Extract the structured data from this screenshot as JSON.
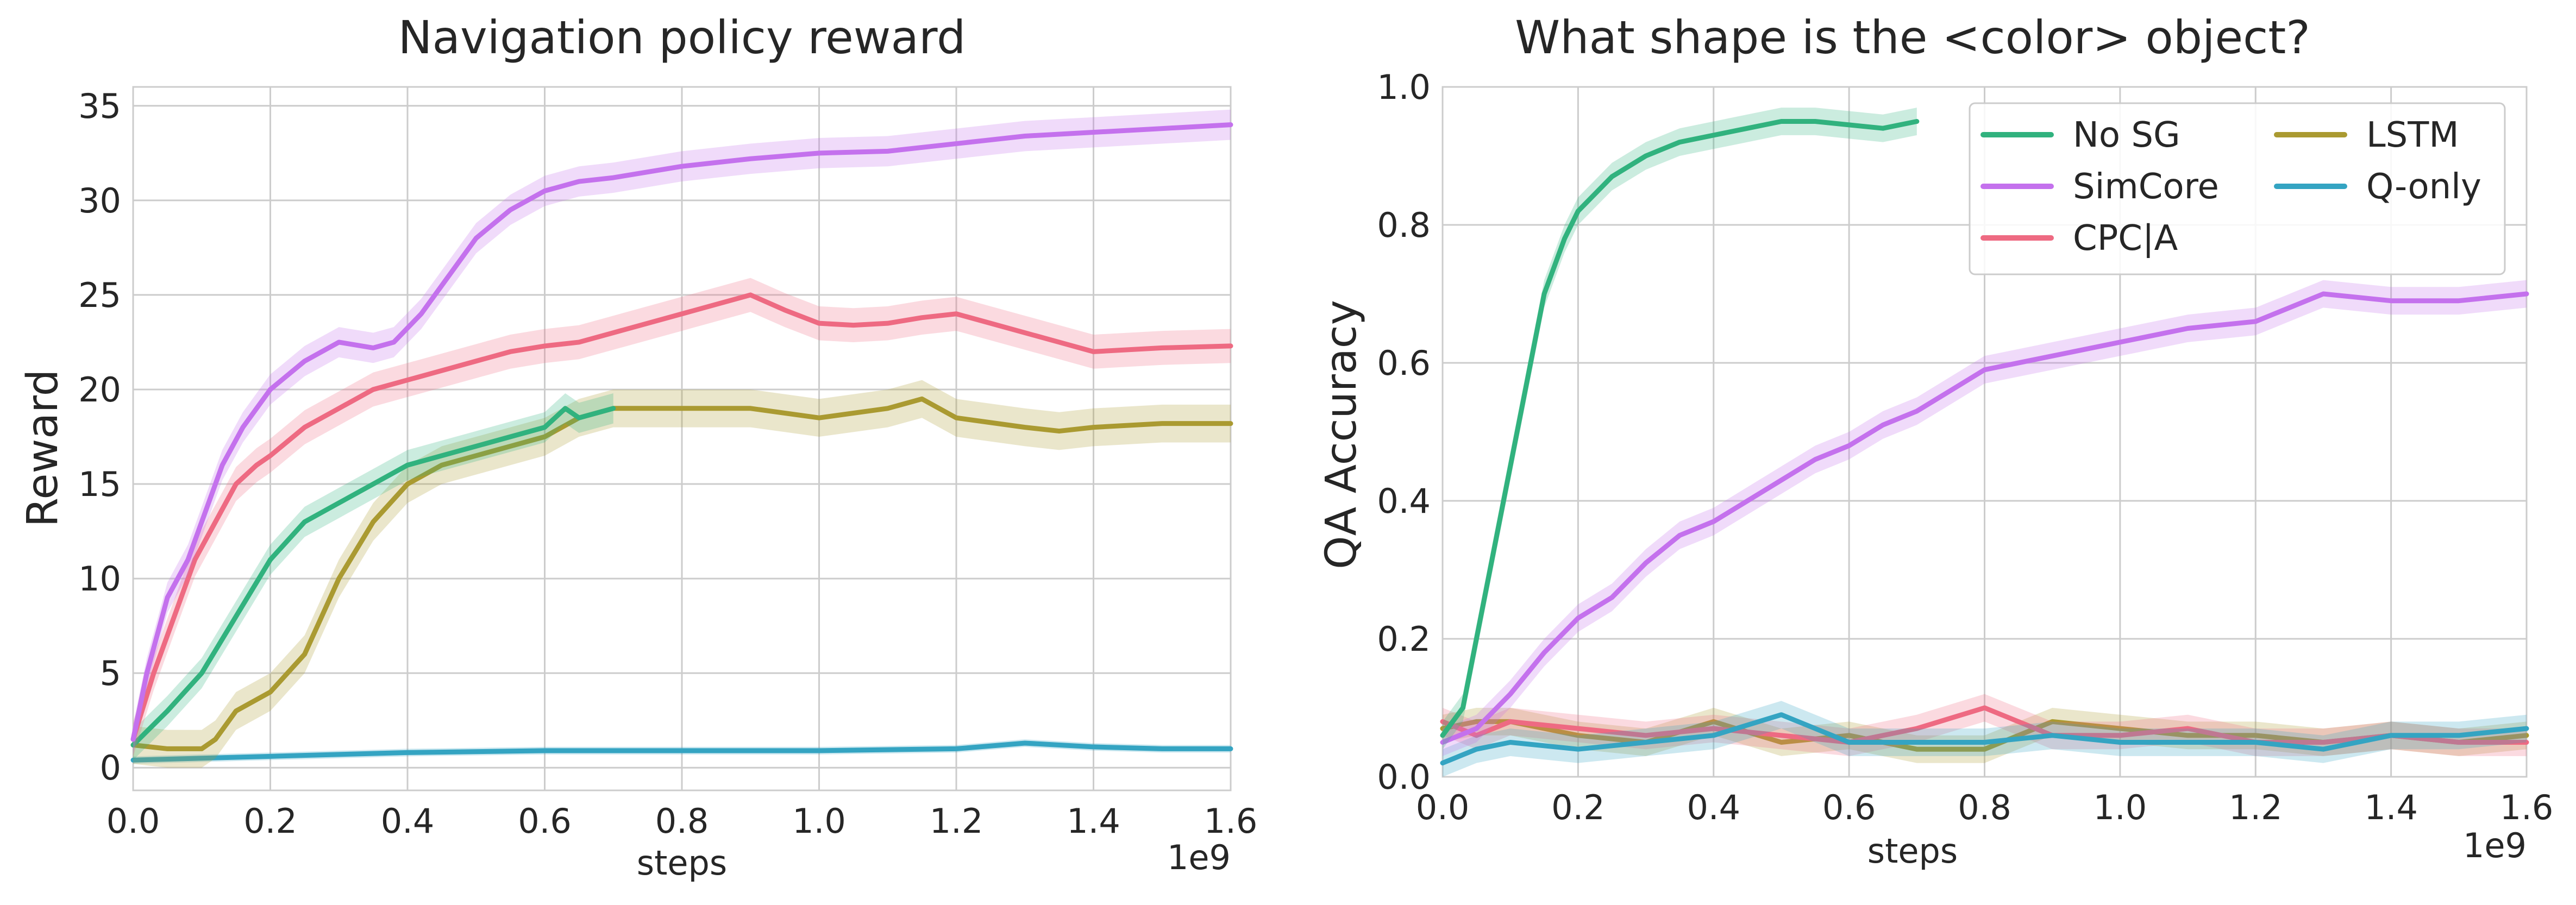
{
  "chart_data": [
    {
      "type": "line",
      "title": "Navigation policy reward",
      "xlabel": "steps",
      "ylabel": "Reward",
      "x_offset_label": "1e9",
      "xlim": [
        0,
        1.6
      ],
      "ylim": [
        -1.2,
        36
      ],
      "xticks": [
        0.0,
        0.2,
        0.4,
        0.6,
        0.8,
        1.0,
        1.2,
        1.4,
        1.6
      ],
      "xtick_labels": [
        "0.0",
        "0.2",
        "0.4",
        "0.6",
        "0.8",
        "1.0",
        "1.2",
        "1.4",
        "1.6"
      ],
      "yticks": [
        0,
        5,
        10,
        15,
        20,
        25,
        30,
        35
      ],
      "ytick_labels": [
        "0",
        "5",
        "10",
        "15",
        "20",
        "25",
        "30",
        "35"
      ],
      "grid": true,
      "series": [
        {
          "name": "SimCore",
          "color": "#c471ed",
          "band": 0.8,
          "x": [
            0,
            0.02,
            0.05,
            0.08,
            0.1,
            0.13,
            0.16,
            0.2,
            0.25,
            0.3,
            0.35,
            0.38,
            0.42,
            0.46,
            0.5,
            0.55,
            0.6,
            0.65,
            0.7,
            0.8,
            0.9,
            1.0,
            1.1,
            1.2,
            1.3,
            1.4,
            1.5,
            1.6
          ],
          "y": [
            1.5,
            5,
            9,
            11,
            13,
            16,
            18,
            20,
            21.5,
            22.5,
            22.2,
            22.5,
            24,
            26,
            28,
            29.5,
            30.5,
            31,
            31.2,
            31.8,
            32.2,
            32.5,
            32.6,
            33,
            33.4,
            33.6,
            33.8,
            34
          ]
        },
        {
          "name": "CPC|A",
          "color": "#ee6a82",
          "band": 0.9,
          "x": [
            0,
            0.03,
            0.06,
            0.09,
            0.12,
            0.15,
            0.18,
            0.2,
            0.25,
            0.3,
            0.35,
            0.4,
            0.45,
            0.5,
            0.55,
            0.6,
            0.65,
            0.7,
            0.8,
            0.85,
            0.9,
            0.95,
            1.0,
            1.05,
            1.1,
            1.15,
            1.2,
            1.25,
            1.3,
            1.35,
            1.4,
            1.5,
            1.6
          ],
          "y": [
            1.5,
            5,
            8,
            11,
            13,
            15,
            16,
            16.5,
            18,
            19,
            20,
            20.5,
            21,
            21.5,
            22,
            22.3,
            22.5,
            23,
            24,
            24.5,
            25,
            24.2,
            23.5,
            23.4,
            23.5,
            23.8,
            24,
            23.5,
            23,
            22.5,
            22,
            22.2,
            22.3
          ]
        },
        {
          "name": "No SG",
          "color": "#31b27e",
          "band": 0.8,
          "x": [
            0,
            0.05,
            0.1,
            0.15,
            0.2,
            0.25,
            0.3,
            0.35,
            0.4,
            0.45,
            0.5,
            0.55,
            0.6,
            0.63,
            0.65,
            0.7
          ],
          "y": [
            1.2,
            3,
            5,
            8,
            11,
            13,
            14,
            15,
            16,
            16.5,
            17,
            17.5,
            18,
            19,
            18.5,
            19
          ]
        },
        {
          "name": "LSTM",
          "color": "#aa9a31",
          "band": 1.0,
          "x": [
            0,
            0.05,
            0.1,
            0.12,
            0.15,
            0.2,
            0.25,
            0.3,
            0.35,
            0.4,
            0.45,
            0.5,
            0.55,
            0.6,
            0.65,
            0.7,
            0.8,
            0.9,
            1.0,
            1.1,
            1.15,
            1.2,
            1.3,
            1.35,
            1.4,
            1.5,
            1.6
          ],
          "y": [
            1.2,
            1,
            1,
            1.5,
            3,
            4,
            6,
            10,
            13,
            15,
            16,
            16.5,
            17,
            17.5,
            18.5,
            19,
            19,
            19,
            18.5,
            19,
            19.5,
            18.5,
            18,
            17.8,
            18,
            18.2,
            18.2
          ]
        },
        {
          "name": "Q-only",
          "color": "#34a4c2",
          "band": 0.2,
          "x": [
            0,
            0.2,
            0.4,
            0.6,
            0.8,
            1.0,
            1.2,
            1.3,
            1.4,
            1.5,
            1.6
          ],
          "y": [
            0.4,
            0.6,
            0.8,
            0.9,
            0.9,
            0.9,
            1.0,
            1.3,
            1.1,
            1.0,
            1.0
          ]
        }
      ]
    },
    {
      "type": "line",
      "title": "What shape is the <color> object?",
      "xlabel": "steps",
      "ylabel": "QA Accuracy",
      "x_offset_label": "1e9",
      "xlim": [
        0,
        1.6
      ],
      "ylim": [
        0,
        1.0
      ],
      "xticks": [
        0.0,
        0.2,
        0.4,
        0.6,
        0.8,
        1.0,
        1.2,
        1.4,
        1.6
      ],
      "xtick_labels": [
        "0.0",
        "0.2",
        "0.4",
        "0.6",
        "0.8",
        "1.0",
        "1.2",
        "1.4",
        "1.6"
      ],
      "yticks": [
        0.0,
        0.2,
        0.4,
        0.6,
        0.8,
        1.0
      ],
      "ytick_labels": [
        "0.0",
        "0.2",
        "0.4",
        "0.6",
        "0.8",
        "1.0"
      ],
      "grid": true,
      "legend": {
        "position": "top-right",
        "columns": 2,
        "entries": [
          "No SG",
          "SimCore",
          "CPC|A",
          "LSTM",
          "Q-only"
        ]
      },
      "series": [
        {
          "name": "No SG",
          "color": "#31b27e",
          "band": 0.02,
          "x": [
            0,
            0.03,
            0.05,
            0.08,
            0.1,
            0.13,
            0.15,
            0.18,
            0.2,
            0.25,
            0.3,
            0.35,
            0.4,
            0.45,
            0.5,
            0.55,
            0.6,
            0.65,
            0.7
          ],
          "y": [
            0.06,
            0.1,
            0.2,
            0.35,
            0.45,
            0.6,
            0.7,
            0.78,
            0.82,
            0.87,
            0.9,
            0.92,
            0.93,
            0.94,
            0.95,
            0.95,
            0.945,
            0.94,
            0.95
          ]
        },
        {
          "name": "SimCore",
          "color": "#c471ed",
          "band": 0.02,
          "x": [
            0,
            0.05,
            0.1,
            0.15,
            0.2,
            0.25,
            0.3,
            0.35,
            0.4,
            0.45,
            0.5,
            0.55,
            0.6,
            0.65,
            0.7,
            0.75,
            0.8,
            0.9,
            1.0,
            1.1,
            1.2,
            1.25,
            1.3,
            1.4,
            1.5,
            1.6
          ],
          "y": [
            0.05,
            0.07,
            0.12,
            0.18,
            0.23,
            0.26,
            0.31,
            0.35,
            0.37,
            0.4,
            0.43,
            0.46,
            0.48,
            0.51,
            0.53,
            0.56,
            0.59,
            0.61,
            0.63,
            0.65,
            0.66,
            0.68,
            0.7,
            0.69,
            0.69,
            0.7
          ]
        },
        {
          "name": "CPC|A",
          "color": "#ee6a82",
          "band": 0.02,
          "x": [
            0,
            0.05,
            0.1,
            0.2,
            0.3,
            0.4,
            0.5,
            0.6,
            0.7,
            0.8,
            0.85,
            0.9,
            1.0,
            1.1,
            1.2,
            1.3,
            1.4,
            1.5,
            1.6
          ],
          "y": [
            0.08,
            0.06,
            0.08,
            0.07,
            0.06,
            0.07,
            0.06,
            0.05,
            0.07,
            0.1,
            0.08,
            0.06,
            0.06,
            0.07,
            0.05,
            0.05,
            0.06,
            0.05,
            0.05
          ]
        },
        {
          "name": "LSTM",
          "color": "#aa9a31",
          "band": 0.02,
          "x": [
            0,
            0.05,
            0.1,
            0.2,
            0.3,
            0.4,
            0.5,
            0.6,
            0.7,
            0.8,
            0.9,
            1.0,
            1.1,
            1.2,
            1.3,
            1.4,
            1.5,
            1.6
          ],
          "y": [
            0.07,
            0.08,
            0.08,
            0.06,
            0.05,
            0.08,
            0.05,
            0.06,
            0.04,
            0.04,
            0.08,
            0.07,
            0.06,
            0.06,
            0.05,
            0.06,
            0.05,
            0.06
          ]
        },
        {
          "name": "Q-only",
          "color": "#34a4c2",
          "band": 0.02,
          "x": [
            0,
            0.05,
            0.1,
            0.2,
            0.3,
            0.4,
            0.5,
            0.6,
            0.7,
            0.8,
            0.9,
            1.0,
            1.1,
            1.2,
            1.3,
            1.4,
            1.5,
            1.6
          ],
          "y": [
            0.02,
            0.04,
            0.05,
            0.04,
            0.05,
            0.06,
            0.09,
            0.05,
            0.05,
            0.05,
            0.06,
            0.05,
            0.05,
            0.05,
            0.04,
            0.06,
            0.06,
            0.07
          ]
        }
      ]
    }
  ]
}
